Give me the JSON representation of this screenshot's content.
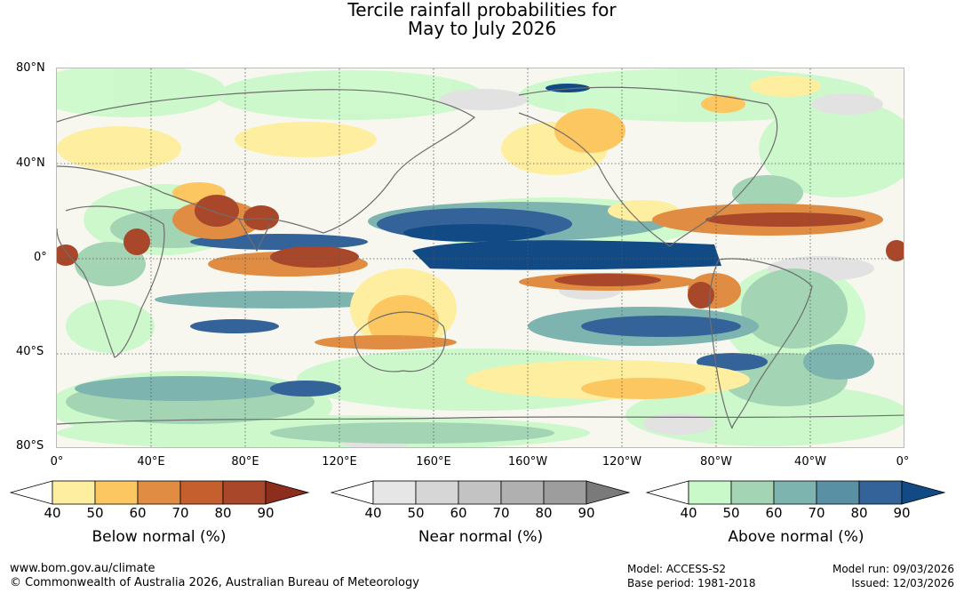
{
  "title": {
    "line1": "Tercile rainfall probabilities for",
    "line2": "May to July 2026"
  },
  "map": {
    "lat_labels": [
      "80°N",
      "40°N",
      "0°",
      "40°S",
      "80°S"
    ],
    "lon_labels": [
      "0°",
      "40°E",
      "80°E",
      "120°E",
      "160°E",
      "160°W",
      "120°W",
      "80°W",
      "40°W",
      "0°"
    ]
  },
  "legends": [
    {
      "id": "below",
      "title": "Below normal (%)",
      "ticks": [
        "40",
        "50",
        "60",
        "70",
        "80",
        "90"
      ],
      "colors": [
        "#ffffff",
        "#fdeea0",
        "#fcc661",
        "#e08c42",
        "#c65f2e",
        "#a9472a",
        "#8c2d1e"
      ]
    },
    {
      "id": "near",
      "title": "Near normal (%)",
      "ticks": [
        "40",
        "50",
        "60",
        "70",
        "80",
        "90"
      ],
      "colors": [
        "#ffffff",
        "#e6e6e6",
        "#d6d6d6",
        "#c3c3c3",
        "#b0b0b0",
        "#9d9d9d",
        "#7a7a7a"
      ]
    },
    {
      "id": "above",
      "title": "Above normal (%)",
      "ticks": [
        "40",
        "50",
        "60",
        "70",
        "80",
        "90"
      ],
      "colors": [
        "#ffffff",
        "#c9f9c9",
        "#a3d4b4",
        "#7eb4b0",
        "#5990a4",
        "#34639a",
        "#124a85"
      ]
    }
  ],
  "footer": {
    "website": "www.bom.gov.au/climate",
    "copyright": "© Commonwealth of Australia 2026, Australian Bureau of Meteorology",
    "model": "Model: ACCESS-S2",
    "base_period": "Base period: 1981-2018",
    "model_run": "Model run: 09/03/2026",
    "issued": "Issued: 12/03/2026"
  }
}
